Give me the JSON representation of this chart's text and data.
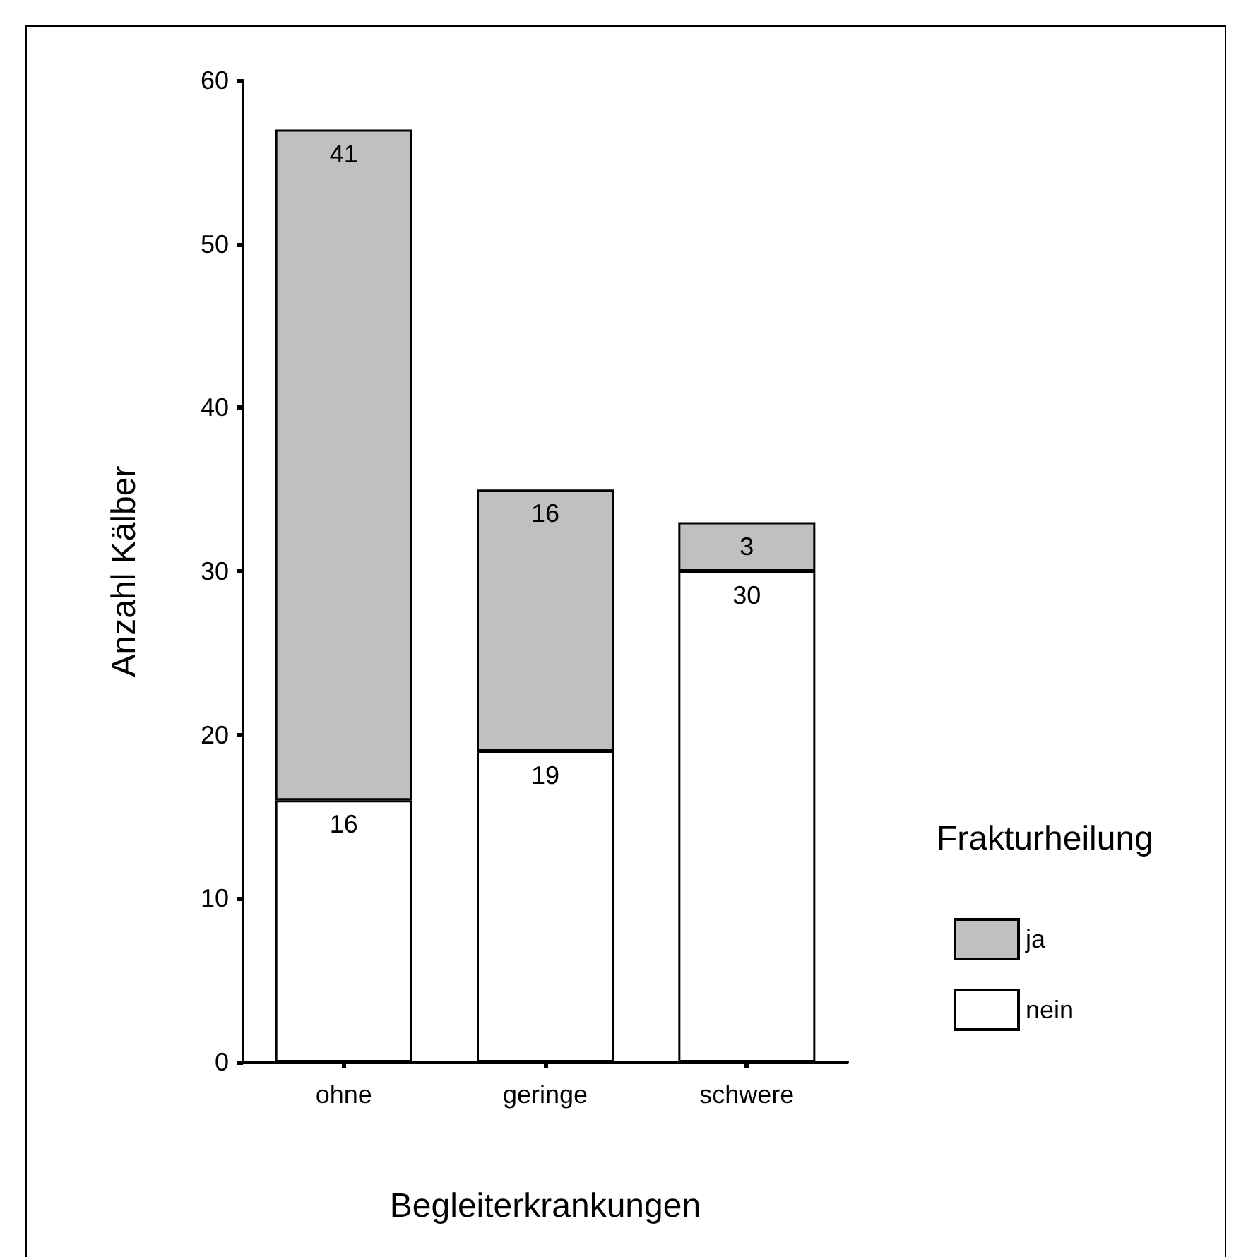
{
  "chart_data": {
    "type": "bar",
    "stacked": true,
    "xlabel": "Begleiterkrankungen",
    "ylabel": "Anzahl Kälber",
    "legend_title": "Frakturheilung",
    "categories": [
      "ohne",
      "geringe",
      "schwere"
    ],
    "series": [
      {
        "name": "nein",
        "color": "#ffffff",
        "values": [
          16,
          19,
          30
        ]
      },
      {
        "name": "ja",
        "color": "#c0c0c0",
        "values": [
          41,
          16,
          3
        ]
      }
    ],
    "ylim": [
      0,
      60
    ],
    "yticks": [
      0,
      10,
      20,
      30,
      40,
      50,
      60
    ],
    "grid": false,
    "legend": "right",
    "data_labels": true
  }
}
